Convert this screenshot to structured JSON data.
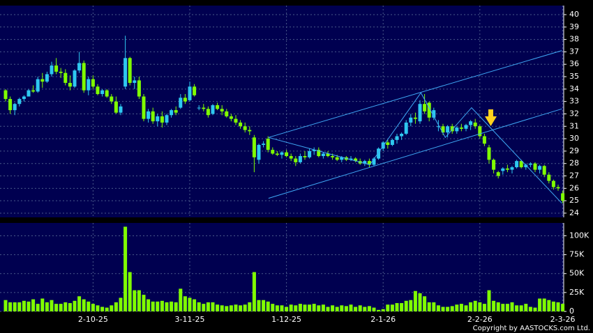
{
  "chart_data": [
    {
      "type": "candlestick",
      "open": [
        33.9,
        33.2,
        32.3,
        32.8,
        33.2,
        33.4,
        33.9,
        33.8,
        34.8,
        34.6,
        35.2,
        35.9,
        35.4,
        35.3,
        34.5,
        34.2,
        35.5,
        36.1,
        33.9,
        34.8,
        34.2,
        33.6,
        33.9,
        33.4,
        33.0,
        32.1,
        34.2,
        36.5,
        34.5,
        34.7,
        33.4,
        31.6,
        32.2,
        31.4,
        31.8,
        31.3,
        31.9,
        32.3,
        32.5,
        33.3,
        33.1,
        34.2,
        32.5,
        32.5,
        32.4,
        32.0,
        32.7,
        32.4,
        32.2,
        31.8,
        31.6,
        31.3,
        31.0,
        30.7,
        30.1,
        28.3,
        29.5,
        30.0,
        29.1,
        28.8,
        28.7,
        28.9,
        28.6,
        28.4,
        28.1,
        28.6,
        28.5,
        29.0,
        29.1,
        28.6,
        28.8,
        28.6,
        28.5,
        28.3,
        28.5,
        28.3,
        28.4,
        28.2,
        28.0,
        28.2,
        27.9,
        28.4,
        29.2,
        29.7,
        29.5,
        29.9,
        30.2,
        30.4,
        31.3,
        31.7,
        31.4,
        32.8,
        32.9,
        31.7,
        31.0,
        31.0,
        30.5,
        31.0,
        30.6,
        30.9,
        30.8,
        31.1,
        31.3,
        31.0,
        30.2,
        29.3,
        28.3,
        27.3,
        27.4,
        27.6,
        27.5,
        27.7,
        28.2,
        27.7,
        27.9,
        28.0,
        27.5,
        27.8,
        27.1,
        26.6,
        26.1,
        25.6
      ],
      "high": [
        34.0,
        33.4,
        32.9,
        33.3,
        33.5,
        34.0,
        34.3,
        35.0,
        35.3,
        35.4,
        36.2,
        36.5,
        35.7,
        35.6,
        35.1,
        35.6,
        37.0,
        36.3,
        35.0,
        35.1,
        34.4,
        34.0,
        34.0,
        33.6,
        33.4,
        32.8,
        38.3,
        36.6,
        35.0,
        35.0,
        33.6,
        32.4,
        32.5,
        32.0,
        32.2,
        32.0,
        32.4,
        32.6,
        33.6,
        33.6,
        34.6,
        34.4,
        32.7,
        32.8,
        32.6,
        32.8,
        32.9,
        32.7,
        32.4,
        32.0,
        31.9,
        31.5,
        31.3,
        31.0,
        30.3,
        29.6,
        29.8,
        30.2,
        29.3,
        29.0,
        29.0,
        29.1,
        28.8,
        28.6,
        28.8,
        29.0,
        29.2,
        29.3,
        29.3,
        28.9,
        29.0,
        28.8,
        28.7,
        28.6,
        28.6,
        28.6,
        28.5,
        28.4,
        28.3,
        28.4,
        28.5,
        29.3,
        29.8,
        29.9,
        30.0,
        30.4,
        30.5,
        31.5,
        32.0,
        32.1,
        33.1,
        33.6,
        33.0,
        32.5,
        31.5,
        31.2,
        31.1,
        31.2,
        31.0,
        31.2,
        31.2,
        31.5,
        31.6,
        31.1,
        30.4,
        29.5,
        28.4,
        27.4,
        27.7,
        27.9,
        27.8,
        28.3,
        28.3,
        28.0,
        28.1,
        28.1,
        27.9,
        27.9,
        27.3,
        26.7,
        26.3,
        25.8
      ],
      "low": [
        33.0,
        32.0,
        31.9,
        32.6,
        33.0,
        33.4,
        33.7,
        33.7,
        34.1,
        34.5,
        35.0,
        35.2,
        34.9,
        34.3,
        33.9,
        34.1,
        35.3,
        33.7,
        33.5,
        34.0,
        33.5,
        33.4,
        33.3,
        32.8,
        32.0,
        31.9,
        34.0,
        34.3,
        34.0,
        33.2,
        31.4,
        31.3,
        31.2,
        31.0,
        30.9,
        31.1,
        31.7,
        31.9,
        32.4,
        32.8,
        33.0,
        33.4,
        32.3,
        32.2,
        31.7,
        31.9,
        32.3,
        31.9,
        31.7,
        31.4,
        31.1,
        30.8,
        30.5,
        30.3,
        27.3,
        28.0,
        29.3,
        28.9,
        28.7,
        28.6,
        28.4,
        28.5,
        28.2,
        27.8,
        28.0,
        28.3,
        28.4,
        28.7,
        28.5,
        28.4,
        28.5,
        28.3,
        28.2,
        28.1,
        28.2,
        28.2,
        28.1,
        27.9,
        27.8,
        27.7,
        27.8,
        28.3,
        29.0,
        29.2,
        29.4,
        29.6,
        29.9,
        30.3,
        31.0,
        31.2,
        31.2,
        32.0,
        31.4,
        31.5,
        30.6,
        30.3,
        30.1,
        30.4,
        30.4,
        30.6,
        30.6,
        30.7,
        30.8,
        30.0,
        29.4,
        28.0,
        27.2,
        26.8,
        27.1,
        27.3,
        27.2,
        27.6,
        27.6,
        27.5,
        27.7,
        27.3,
        27.2,
        26.9,
        26.4,
        25.9,
        25.8,
        24.8
      ],
      "close": [
        33.2,
        32.3,
        32.8,
        33.2,
        33.4,
        33.9,
        33.8,
        34.8,
        34.6,
        35.2,
        35.9,
        35.4,
        35.3,
        34.5,
        34.2,
        35.5,
        36.1,
        33.9,
        34.8,
        34.2,
        33.6,
        33.9,
        33.4,
        33.0,
        32.1,
        32.6,
        36.5,
        34.5,
        34.7,
        33.4,
        31.6,
        32.2,
        31.4,
        31.8,
        31.3,
        31.9,
        32.3,
        32.1,
        33.3,
        33.0,
        34.2,
        33.5,
        32.5,
        32.4,
        31.9,
        32.7,
        32.4,
        32.2,
        31.8,
        31.6,
        31.3,
        31.0,
        30.7,
        30.6,
        28.5,
        29.5,
        29.6,
        29.1,
        28.8,
        28.7,
        28.9,
        28.6,
        28.4,
        28.1,
        28.6,
        28.5,
        29.0,
        29.1,
        28.6,
        28.8,
        28.6,
        28.5,
        28.3,
        28.5,
        28.3,
        28.4,
        28.2,
        28.0,
        28.2,
        27.9,
        28.4,
        29.2,
        29.7,
        29.5,
        29.9,
        30.2,
        30.4,
        31.3,
        31.7,
        31.6,
        32.8,
        32.2,
        31.7,
        32.3,
        31.0,
        30.5,
        31.0,
        30.6,
        30.9,
        30.8,
        31.1,
        31.4,
        31.0,
        30.2,
        29.6,
        28.3,
        27.5,
        27.0,
        27.6,
        27.5,
        27.7,
        28.2,
        27.7,
        27.9,
        28.0,
        27.5,
        27.8,
        27.1,
        26.6,
        26.1,
        26.0,
        25.0
      ],
      "up_color": "#2ec8f0",
      "down_color": "#80ff00",
      "background": "#000050",
      "ylim": [
        23.66,
        40.73
      ],
      "yticks": [
        24,
        25,
        26,
        27,
        28,
        29,
        30,
        31,
        32,
        33,
        34,
        35,
        36,
        37,
        38,
        39,
        40
      ],
      "grid": true,
      "trendlines": [
        {
          "color": "#3fa9f5",
          "x": [
            57.1,
            120.8
          ],
          "y": [
            25.2,
            32.4
          ]
        },
        {
          "color": "#3fa9f5",
          "x": [
            57.1,
            120.8
          ],
          "y": [
            30.1,
            37.1
          ]
        },
        {
          "color": "#3fa9f5",
          "x": [
            57.1,
            79.1,
            90.2,
            95.5,
            101.2,
            120.8
          ],
          "y": [
            30.1,
            27.9,
            33.7,
            30.1,
            32.5,
            24.8
          ]
        }
      ]
    },
    {
      "type": "bar",
      "categories": [
        null,
        null,
        null,
        null,
        null,
        null,
        null,
        null,
        null,
        null,
        null,
        null,
        null,
        null,
        null,
        null,
        null,
        null,
        null,
        "2-10-25",
        null,
        null,
        null,
        null,
        null,
        null,
        null,
        null,
        null,
        null,
        null,
        null,
        null,
        null,
        null,
        null,
        null,
        null,
        null,
        null,
        "3-11-25",
        null,
        null,
        null,
        null,
        null,
        null,
        null,
        null,
        null,
        null,
        null,
        null,
        null,
        null,
        null,
        null,
        null,
        null,
        null,
        null,
        "1-12-25",
        null,
        null,
        null,
        null,
        null,
        null,
        null,
        null,
        null,
        null,
        null,
        null,
        null,
        null,
        null,
        null,
        null,
        null,
        null,
        null,
        "2-1-26",
        null,
        null,
        null,
        null,
        null,
        null,
        null,
        null,
        null,
        null,
        null,
        null,
        null,
        null,
        null,
        null,
        null,
        null,
        null,
        null,
        "2-2-26",
        null,
        null,
        null,
        null,
        null,
        null,
        null,
        null,
        null,
        null,
        null,
        null,
        null,
        null,
        null,
        null,
        null,
        "2-3-26"
      ],
      "values": [
        15000,
        12000,
        12000,
        12000,
        14000,
        13000,
        16000,
        10000,
        17000,
        12000,
        15000,
        10000,
        10000,
        12000,
        11000,
        14000,
        20000,
        16000,
        13000,
        10000,
        8000,
        6000,
        5000,
        8000,
        12000,
        18000,
        112000,
        52000,
        28000,
        28000,
        22000,
        16000,
        13000,
        13000,
        14000,
        12000,
        13000,
        12000,
        30000,
        20000,
        18000,
        16000,
        12000,
        10000,
        12000,
        12000,
        9000,
        8000,
        7000,
        8000,
        9000,
        8000,
        9000,
        12000,
        52000,
        15000,
        15000,
        13000,
        10000,
        8000,
        8000,
        6000,
        9000,
        8000,
        10000,
        9000,
        9000,
        10000,
        8000,
        9000,
        6000,
        8000,
        6000,
        8000,
        7000,
        9000,
        6000,
        8000,
        6000,
        7000,
        5000,
        2000,
        3000,
        9000,
        9000,
        11000,
        11000,
        14000,
        15000,
        27000,
        24000,
        20000,
        12000,
        12000,
        8000,
        6000,
        6000,
        7000,
        9000,
        10000,
        8000,
        12000,
        14000,
        12000,
        10000,
        28000,
        14000,
        12000,
        10000,
        10000,
        12000,
        8000,
        8000,
        10000,
        6000,
        5000,
        17000,
        17000,
        15000,
        13000,
        12000,
        10000
      ],
      "color": "#80ff00",
      "background": "#000050",
      "ylim": [
        0,
        117000
      ],
      "yticks": [
        0,
        {
          "value": 25000,
          "label": "25K"
        },
        {
          "value": 50000,
          "label": "50K"
        },
        {
          "value": 75000,
          "label": "75K"
        },
        {
          "value": 100000,
          "label": "100K"
        }
      ],
      "grid": true
    }
  ],
  "footer": {
    "copyright": "Copyright by AASTOCKS.com Ltd."
  }
}
